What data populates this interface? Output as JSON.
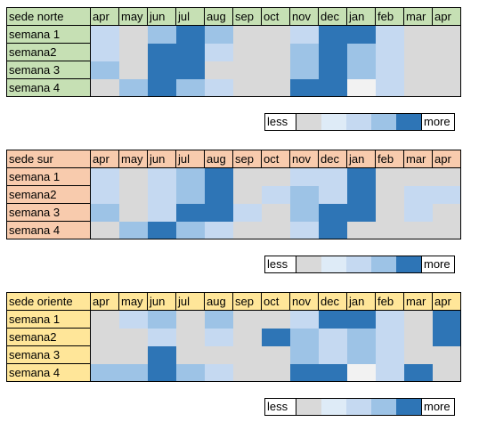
{
  "chart_data": [
    {
      "type": "heatmap",
      "row_header": "sede norte",
      "columns": [
        "apr",
        "may",
        "jun",
        "jul",
        "aug",
        "sep",
        "oct",
        "nov",
        "dec",
        "jan",
        "feb",
        "mar",
        "apr"
      ],
      "rows": [
        "semana 1",
        "semana2",
        "semana 3",
        "semana 4"
      ],
      "values": [
        [
          1,
          0,
          2,
          4,
          2,
          0,
          0,
          1,
          4,
          4,
          1,
          0,
          0
        ],
        [
          1,
          0,
          4,
          4,
          1,
          0,
          0,
          2,
          4,
          2,
          1,
          0,
          0
        ],
        [
          2,
          0,
          4,
          4,
          0,
          0,
          0,
          2,
          4,
          2,
          1,
          0,
          0
        ],
        [
          0,
          2,
          4,
          2,
          1,
          0,
          0,
          4,
          4,
          -1,
          1,
          0,
          0
        ]
      ],
      "header_color": "#c6e0b4"
    },
    {
      "type": "heatmap",
      "row_header": "sede sur",
      "columns": [
        "apr",
        "may",
        "jun",
        "jul",
        "aug",
        "sep",
        "oct",
        "nov",
        "dec",
        "jan",
        "feb",
        "mar",
        "apr"
      ],
      "rows": [
        "semana 1",
        "semana2",
        "semana 3",
        "semana 4"
      ],
      "values": [
        [
          1,
          0,
          1,
          2,
          4,
          0,
          0,
          1,
          1,
          4,
          0,
          0,
          0
        ],
        [
          1,
          0,
          1,
          2,
          4,
          0,
          1,
          2,
          1,
          4,
          0,
          1,
          1
        ],
        [
          2,
          0,
          1,
          4,
          4,
          1,
          0,
          2,
          4,
          4,
          0,
          1,
          0
        ],
        [
          0,
          2,
          4,
          2,
          1,
          0,
          0,
          1,
          4,
          0,
          0,
          0,
          0
        ]
      ],
      "header_color": "#f8cbad"
    },
    {
      "type": "heatmap",
      "row_header": "sede oriente",
      "columns": [
        "apr",
        "may",
        "jun",
        "jul",
        "aug",
        "sep",
        "oct",
        "nov",
        "dec",
        "jan",
        "feb",
        "mar",
        "apr"
      ],
      "rows": [
        "semana 1",
        "semana2",
        "semana 3",
        "semana 4"
      ],
      "values": [
        [
          0,
          1,
          2,
          0,
          2,
          0,
          0,
          1,
          4,
          4,
          1,
          0,
          4
        ],
        [
          0,
          0,
          1,
          0,
          1,
          0,
          4,
          2,
          1,
          2,
          1,
          0,
          4
        ],
        [
          0,
          0,
          4,
          0,
          0,
          0,
          0,
          2,
          1,
          2,
          1,
          0,
          0
        ],
        [
          2,
          2,
          4,
          2,
          1,
          0,
          0,
          4,
          4,
          -1,
          1,
          4,
          0
        ]
      ],
      "header_color": "#ffe699"
    }
  ],
  "palette": {
    "-1": "#f2f2f2",
    "0": "#d9d9d9",
    "1": "#c5d9f1",
    "2": "#9dc3e6",
    "4": "#2e75b6"
  },
  "legend": {
    "less": "less",
    "more": "more",
    "swatches": [
      "#d9d9d9",
      "#deebf7",
      "#c5d9f1",
      "#9dc3e6",
      "#2e75b6"
    ]
  }
}
